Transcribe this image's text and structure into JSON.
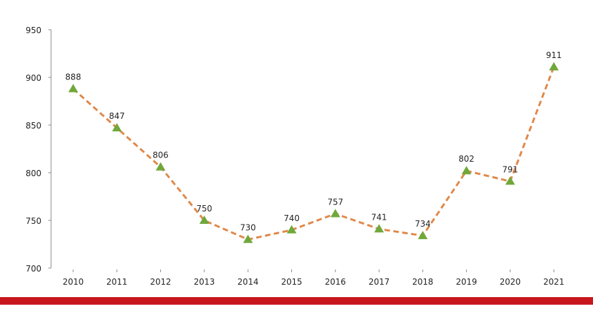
{
  "chart_data": {
    "type": "line",
    "title": "",
    "xlabel": "",
    "ylabel": "",
    "categories": [
      "2010",
      "2011",
      "2012",
      "2013",
      "2014",
      "2015",
      "2016",
      "2017",
      "2018",
      "2019",
      "2020",
      "2021"
    ],
    "series": [
      {
        "name": "",
        "values": [
          888,
          847,
          806,
          750,
          730,
          740,
          757,
          741,
          734,
          802,
          791,
          911
        ]
      }
    ],
    "ylim": [
      700,
      950
    ],
    "yticks": [
      700,
      750,
      800,
      850,
      900,
      950
    ],
    "grid": false,
    "legend": "none",
    "marker": "triangle",
    "line_style": "dashed"
  },
  "colors": {
    "line": "#e0884a",
    "marker": "#70a83a",
    "footer_bar": "#c8161d",
    "axis": "#888888"
  }
}
